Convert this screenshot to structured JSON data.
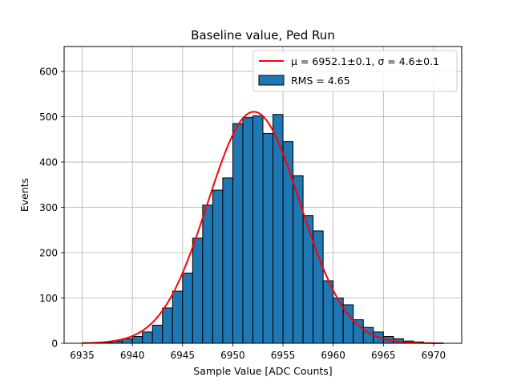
{
  "chart_data": {
    "type": "bar",
    "title": "Baseline value, Ped Run",
    "xlabel": "Sample Value [ADC Counts]",
    "ylabel": "Events",
    "xlim": [
      6933.2,
      6972.8
    ],
    "ylim": [
      0,
      655
    ],
    "grid": true,
    "x_ticks": [
      6935,
      6940,
      6945,
      6950,
      6955,
      6960,
      6965,
      6970
    ],
    "y_ticks": [
      0,
      100,
      200,
      300,
      400,
      500,
      600
    ],
    "bar_color": "#1f77b4",
    "bar_edge_color": "#000000",
    "fit_color": "#ff0000",
    "histogram": {
      "name": "RMS = 4.65",
      "bins": [
        {
          "x0": 6937,
          "x1": 6938,
          "value": 2
        },
        {
          "x0": 6938,
          "x1": 6939,
          "value": 5
        },
        {
          "x0": 6939,
          "x1": 6940,
          "value": 10
        },
        {
          "x0": 6940,
          "x1": 6941,
          "value": 15
        },
        {
          "x0": 6941,
          "x1": 6942,
          "value": 25
        },
        {
          "x0": 6942,
          "x1": 6943,
          "value": 40
        },
        {
          "x0": 6943,
          "x1": 6944,
          "value": 78
        },
        {
          "x0": 6944,
          "x1": 6945,
          "value": 115
        },
        {
          "x0": 6945,
          "x1": 6946,
          "value": 155
        },
        {
          "x0": 6946,
          "x1": 6947,
          "value": 232
        },
        {
          "x0": 6947,
          "x1": 6948,
          "value": 305
        },
        {
          "x0": 6948,
          "x1": 6949,
          "value": 338
        },
        {
          "x0": 6949,
          "x1": 6950,
          "value": 365
        },
        {
          "x0": 6950,
          "x1": 6951,
          "value": 485
        },
        {
          "x0": 6951,
          "x1": 6952,
          "value": 498
        },
        {
          "x0": 6952,
          "x1": 6953,
          "value": 502
        },
        {
          "x0": 6953,
          "x1": 6954,
          "value": 463
        },
        {
          "x0": 6954,
          "x1": 6955,
          "value": 505
        },
        {
          "x0": 6955,
          "x1": 6956,
          "value": 445
        },
        {
          "x0": 6956,
          "x1": 6957,
          "value": 370
        },
        {
          "x0": 6957,
          "x1": 6958,
          "value": 282
        },
        {
          "x0": 6958,
          "x1": 6959,
          "value": 248
        },
        {
          "x0": 6959,
          "x1": 6960,
          "value": 138
        },
        {
          "x0": 6960,
          "x1": 6961,
          "value": 100
        },
        {
          "x0": 6961,
          "x1": 6962,
          "value": 85
        },
        {
          "x0": 6962,
          "x1": 6963,
          "value": 52
        },
        {
          "x0": 6963,
          "x1": 6964,
          "value": 35
        },
        {
          "x0": 6964,
          "x1": 6965,
          "value": 25
        },
        {
          "x0": 6965,
          "x1": 6966,
          "value": 15
        },
        {
          "x0": 6966,
          "x1": 6967,
          "value": 10
        },
        {
          "x0": 6967,
          "x1": 6968,
          "value": 5
        },
        {
          "x0": 6968,
          "x1": 6969,
          "value": 3
        },
        {
          "x0": 6969,
          "x1": 6970,
          "value": 1
        }
      ]
    },
    "fit": {
      "name": "μ = 6952.1±0.1, σ = 4.6±0.1",
      "type": "gaussian",
      "mu": 6952.1,
      "sigma": 4.6,
      "amplitude": 511,
      "x_range": [
        6935,
        6971
      ]
    },
    "legend": {
      "location": "top-right",
      "fit_label": "μ = 6952.1±0.1, σ = 4.6±0.1",
      "hist_label": "RMS = 4.65"
    }
  }
}
